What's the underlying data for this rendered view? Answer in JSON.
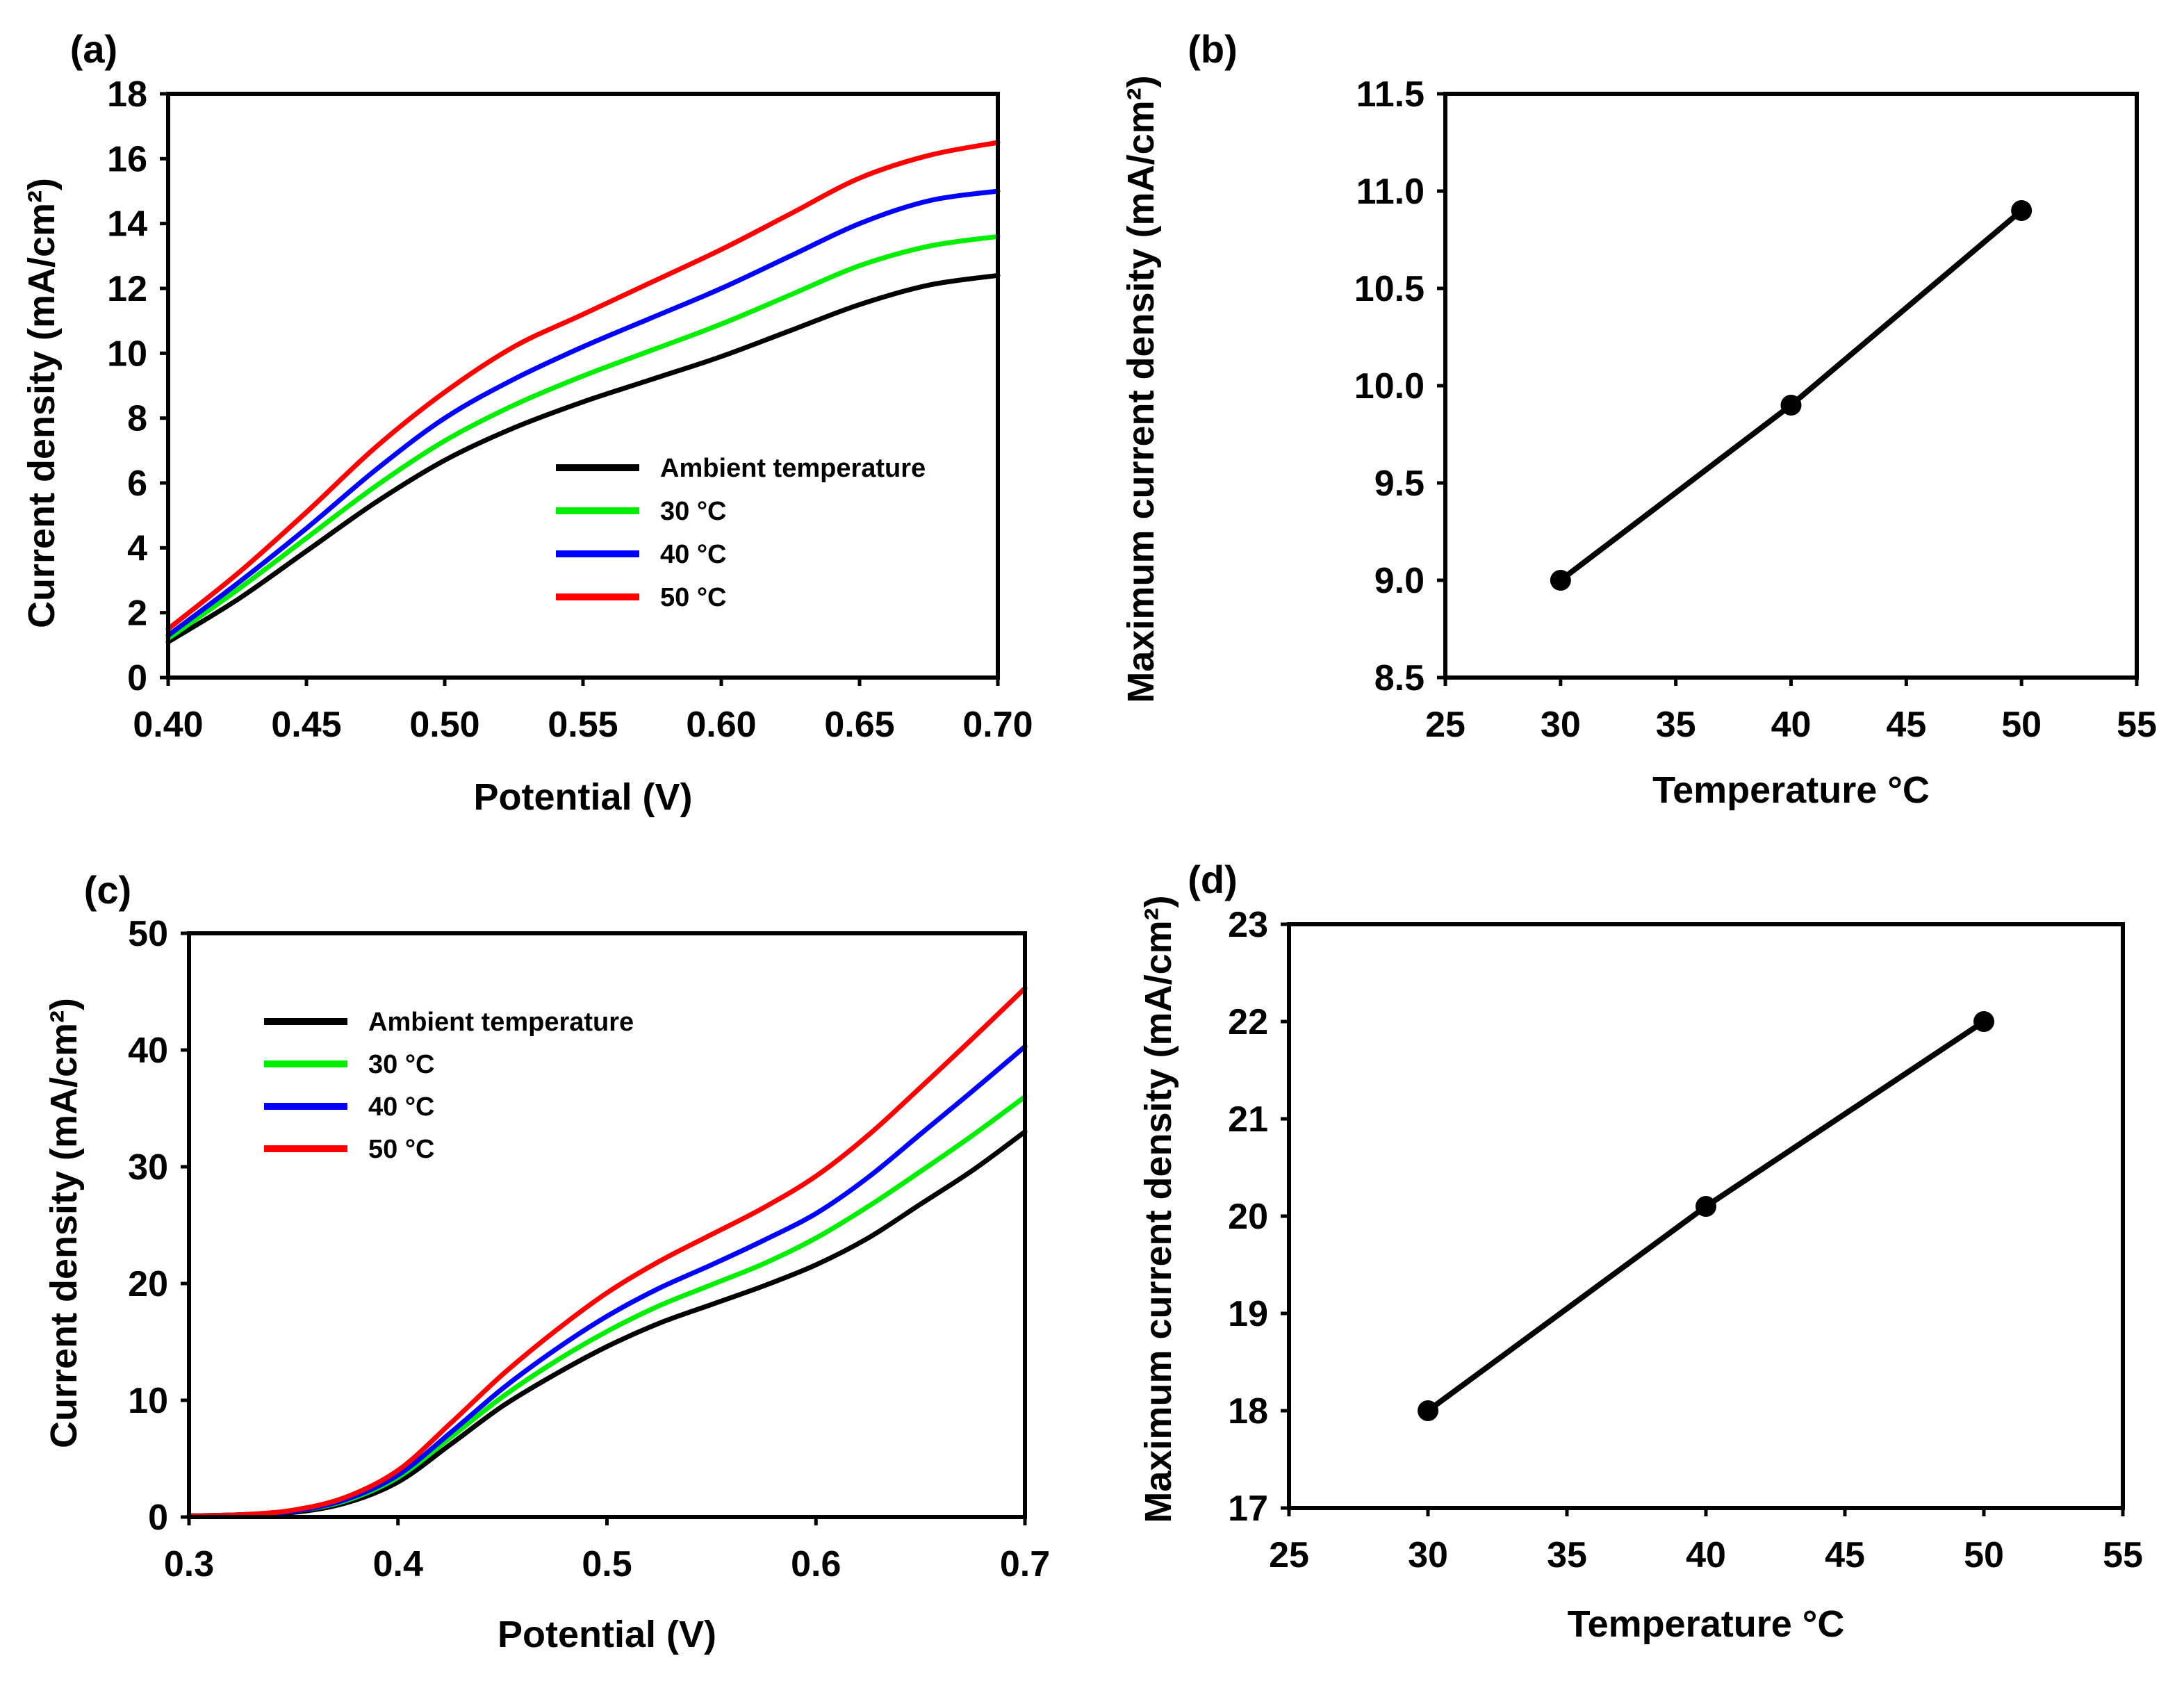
{
  "chart_data": [
    {
      "panel": "(a)",
      "type": "line",
      "xlabel": "Potential (V)",
      "ylabel": "Current density (mA/cm²)",
      "xlim": [
        0.4,
        0.7
      ],
      "ylim": [
        0,
        18
      ],
      "xticks": [
        0.4,
        0.45,
        0.5,
        0.55,
        0.6,
        0.65,
        0.7
      ],
      "xtick_labels": [
        "0.40",
        "0.45",
        "0.50",
        "0.55",
        "0.60",
        "0.65",
        "0.70"
      ],
      "yticks": [
        0,
        2,
        4,
        6,
        8,
        10,
        12,
        14,
        16,
        18
      ],
      "ytick_labels": [
        "0",
        "2",
        "4",
        "6",
        "8",
        "10",
        "12",
        "14",
        "16",
        "18"
      ],
      "grid": false,
      "legend_position": "center-right",
      "x": [
        0.4,
        0.425,
        0.45,
        0.475,
        0.5,
        0.525,
        0.55,
        0.575,
        0.6,
        0.625,
        0.65,
        0.675,
        0.7
      ],
      "series": [
        {
          "name": "Ambient temperature",
          "color": "#000000",
          "values": [
            1.1,
            2.4,
            3.9,
            5.4,
            6.7,
            7.7,
            8.5,
            9.2,
            9.9,
            10.7,
            11.5,
            12.1,
            12.4
          ]
        },
        {
          "name": "30 °C",
          "color": "#00ee00",
          "values": [
            1.2,
            2.7,
            4.3,
            5.9,
            7.3,
            8.4,
            9.3,
            10.1,
            10.9,
            11.8,
            12.7,
            13.3,
            13.6
          ]
        },
        {
          "name": "40 °C",
          "color": "#0000ff",
          "values": [
            1.3,
            2.9,
            4.6,
            6.4,
            8.0,
            9.2,
            10.2,
            11.1,
            12.0,
            13.0,
            14.0,
            14.7,
            15.0
          ]
        },
        {
          "name": "50 °C",
          "color": "#ff0000",
          "values": [
            1.5,
            3.2,
            5.1,
            7.1,
            8.8,
            10.2,
            11.2,
            12.2,
            13.2,
            14.3,
            15.4,
            16.1,
            16.5
          ]
        }
      ]
    },
    {
      "panel": "(b)",
      "type": "scatter",
      "xlabel": "Temperature °C",
      "ylabel": "Maximum current density (mA/cm²)",
      "xlim": [
        25,
        55
      ],
      "ylim": [
        8.5,
        11.5
      ],
      "xticks": [
        25,
        30,
        35,
        40,
        45,
        50,
        55
      ],
      "xtick_labels": [
        "25",
        "30",
        "35",
        "40",
        "45",
        "50",
        "55"
      ],
      "yticks": [
        8.5,
        9.0,
        9.5,
        10.0,
        10.5,
        11.0,
        11.5
      ],
      "ytick_labels": [
        "8.5",
        "9.0",
        "9.5",
        "10.0",
        "10.5",
        "11.0",
        "11.5"
      ],
      "grid": false,
      "series": [
        {
          "name": "Maximum current density",
          "color": "#000000",
          "x": [
            30,
            40,
            50
          ],
          "values": [
            9.0,
            9.9,
            10.9
          ]
        }
      ]
    },
    {
      "panel": "(c)",
      "type": "line",
      "xlabel": "Potential (V)",
      "ylabel": "Current density (mA/cm²)",
      "xlim": [
        0.3,
        0.7
      ],
      "ylim": [
        0,
        50
      ],
      "xticks": [
        0.3,
        0.4,
        0.5,
        0.6,
        0.7
      ],
      "xtick_labels": [
        "0.3",
        "0.4",
        "0.5",
        "0.6",
        "0.7"
      ],
      "yticks": [
        0,
        10,
        20,
        30,
        40,
        50
      ],
      "ytick_labels": [
        "0",
        "10",
        "20",
        "30",
        "40",
        "50"
      ],
      "grid": false,
      "legend_position": "top-left",
      "x": [
        0.3,
        0.325,
        0.35,
        0.375,
        0.4,
        0.425,
        0.45,
        0.475,
        0.5,
        0.525,
        0.55,
        0.575,
        0.6,
        0.625,
        0.65,
        0.675,
        0.7
      ],
      "series": [
        {
          "name": "Ambient temperature",
          "color": "#000000",
          "values": [
            0.1,
            0.2,
            0.4,
            1.2,
            3.0,
            6.2,
            9.5,
            12.2,
            14.6,
            16.6,
            18.2,
            19.8,
            21.6,
            23.9,
            26.8,
            29.7,
            33.0
          ]
        },
        {
          "name": "30 °C",
          "color": "#00ee00",
          "values": [
            0.1,
            0.2,
            0.5,
            1.4,
            3.4,
            6.8,
            10.3,
            13.3,
            15.9,
            18.1,
            19.9,
            21.7,
            23.9,
            26.6,
            29.6,
            32.7,
            36.0
          ]
        },
        {
          "name": "40 °C",
          "color": "#0000ff",
          "values": [
            0.1,
            0.2,
            0.5,
            1.5,
            3.6,
            7.2,
            11.0,
            14.3,
            17.2,
            19.6,
            21.6,
            23.7,
            26.0,
            29.1,
            32.8,
            36.5,
            40.3
          ]
        },
        {
          "name": "50 °C",
          "color": "#ff0000",
          "values": [
            0.1,
            0.2,
            0.6,
            1.7,
            4.0,
            8.0,
            12.2,
            15.9,
            19.2,
            21.9,
            24.2,
            26.5,
            29.2,
            32.7,
            36.8,
            41.0,
            45.3
          ]
        }
      ]
    },
    {
      "panel": "(d)",
      "type": "scatter",
      "xlabel": "Temperature °C",
      "ylabel": "Maximum current density (mA/cm²)",
      "xlim": [
        25,
        55
      ],
      "ylim": [
        17,
        23
      ],
      "xticks": [
        25,
        30,
        35,
        40,
        45,
        50,
        55
      ],
      "xtick_labels": [
        "25",
        "30",
        "35",
        "40",
        "45",
        "50",
        "55"
      ],
      "yticks": [
        17,
        18,
        19,
        20,
        21,
        22,
        23
      ],
      "ytick_labels": [
        "17",
        "18",
        "19",
        "20",
        "21",
        "22",
        "23"
      ],
      "grid": false,
      "series": [
        {
          "name": "Maximum current density",
          "color": "#000000",
          "x": [
            30,
            40,
            50
          ],
          "values": [
            18.0,
            20.1,
            22.0
          ]
        }
      ]
    }
  ]
}
